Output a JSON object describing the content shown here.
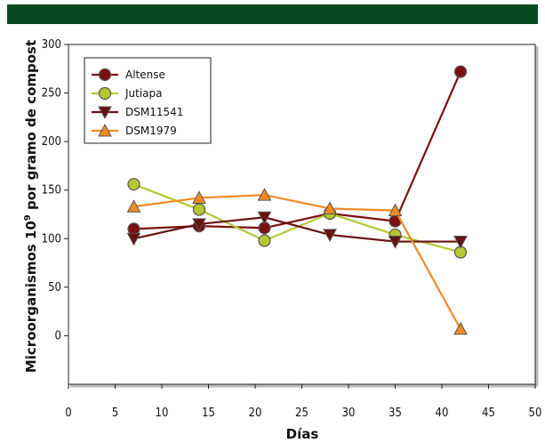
{
  "header": {
    "bar_color": "#0a4a22"
  },
  "chart_data": {
    "type": "line",
    "title": "",
    "xlabel": "Días",
    "ylabel": "Microorganismos 10",
    "ylabel_superscript": "9",
    "ylabel_suffix": " por gramo de compost",
    "xlim": [
      0,
      50
    ],
    "ylim": [
      -50,
      300
    ],
    "xticks": [
      0,
      5,
      10,
      15,
      20,
      25,
      30,
      35,
      40,
      45,
      50
    ],
    "yticks": [
      0,
      50,
      100,
      150,
      200,
      250,
      300
    ],
    "grid": false,
    "legend_position": "top-left",
    "series": [
      {
        "name": "Altense",
        "marker": "circle",
        "color": "#7a1010",
        "x": [
          7,
          14,
          21,
          28,
          35,
          42
        ],
        "y": [
          110,
          113,
          111,
          126,
          118,
          272
        ]
      },
      {
        "name": "Jutiapa",
        "marker": "circle",
        "color": "#b5c832",
        "x": [
          7,
          14,
          21,
          28,
          35,
          42
        ],
        "y": [
          156,
          130,
          98,
          126,
          104,
          86
        ]
      },
      {
        "name": "DSM11541",
        "marker": "triangle-down",
        "color": "#6a1010",
        "x": [
          7,
          14,
          21,
          28,
          35,
          42
        ],
        "y": [
          100,
          115,
          122,
          104,
          97,
          97
        ]
      },
      {
        "name": "DSM1979",
        "marker": "triangle-up",
        "color": "#f08a24",
        "x": [
          7,
          14,
          21,
          28,
          35,
          42
        ],
        "y": [
          133,
          142,
          145,
          131,
          129,
          7
        ]
      }
    ]
  }
}
